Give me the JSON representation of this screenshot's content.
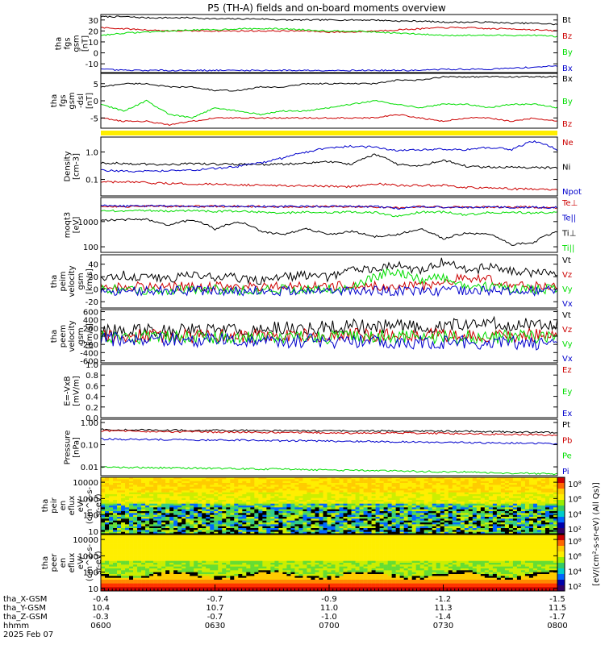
{
  "title": "P5 (TH-A) fields and on-board moments overview",
  "colors": {
    "black": "#000000",
    "red": "#cc0000",
    "green": "#00dd00",
    "blue": "#0000cc",
    "yellow": "#ffee00"
  },
  "chart_data": [
    {
      "type": "line",
      "id": "fgs",
      "ylabel": [
        "tha",
        "fgs",
        "gsm",
        "[nT]"
      ],
      "ylim": [
        -18,
        35
      ],
      "yticks": [
        30,
        20,
        10,
        0,
        -10
      ],
      "series": [
        {
          "name": "Bt",
          "color": "black",
          "values": [
            33,
            33,
            32,
            32,
            32,
            31,
            31,
            31,
            30,
            30,
            30,
            30,
            30,
            29,
            29,
            28,
            28,
            28,
            27,
            27,
            26
          ]
        },
        {
          "name": "Bz",
          "color": "red",
          "values": [
            23,
            22,
            21,
            20,
            20,
            20,
            20,
            20,
            20,
            20,
            19,
            19,
            20,
            21,
            22,
            23,
            23,
            22,
            22,
            21,
            20
          ]
        },
        {
          "name": "By",
          "color": "green",
          "values": [
            16,
            18,
            19,
            20,
            21,
            21,
            22,
            22,
            22,
            21,
            20,
            20,
            19,
            18,
            17,
            16,
            16,
            16,
            16,
            16,
            15
          ]
        },
        {
          "name": "Bx",
          "color": "blue",
          "values": [
            -15,
            -16,
            -16,
            -16,
            -16,
            -16,
            -16,
            -16,
            -16,
            -16,
            -16,
            -16,
            -16,
            -16,
            -16,
            -15,
            -15,
            -15,
            -14,
            -13,
            -12
          ]
        }
      ]
    },
    {
      "type": "line",
      "id": "fgs_dsl",
      "ylabel": [
        "tha",
        "fgs",
        "gsm",
        "-dsl",
        "[nT]"
      ],
      "ylim": [
        -8,
        8
      ],
      "yticks": [
        5,
        0,
        -5
      ],
      "series": [
        {
          "name": "Bx",
          "color": "black",
          "values": [
            4,
            5,
            5,
            4,
            4,
            3,
            3,
            4,
            4,
            5,
            5,
            5,
            5,
            6,
            6,
            7,
            7,
            7,
            7,
            7,
            7
          ]
        },
        {
          "name": "By",
          "color": "green",
          "values": [
            -1,
            -3,
            0,
            -4,
            -5,
            -2,
            -3,
            -4,
            -3,
            -3,
            -2,
            -1,
            0,
            -1,
            -2,
            -1,
            -1,
            -2,
            -1,
            -1,
            -2
          ]
        },
        {
          "name": "Bz",
          "color": "red",
          "values": [
            -5,
            -6,
            -6,
            -7,
            -6,
            -5,
            -5,
            -5,
            -5,
            -5,
            -5,
            -5,
            -5,
            -4,
            -5,
            -6,
            -5,
            -5,
            -6,
            -5,
            -6
          ]
        }
      ]
    },
    {
      "type": "band",
      "id": "mode_bar",
      "color": "yellow"
    },
    {
      "type": "line",
      "id": "density",
      "scale": "log",
      "ylabel": [
        "Density",
        "[cm-3]"
      ],
      "ylim": [
        0.025,
        3.5
      ],
      "yticks": [
        1.0,
        0.1
      ],
      "ytick_labels": [
        "1.0",
        "0.1"
      ],
      "series": [
        {
          "name": "Ne",
          "color": "red",
          "values": [
            0.08,
            0.08,
            0.075,
            0.07,
            0.07,
            0.065,
            0.065,
            0.06,
            0.06,
            0.06,
            0.055,
            0.055,
            0.07,
            0.06,
            0.06,
            0.06,
            0.05,
            0.05,
            0.045,
            0.045,
            0.04
          ]
        },
        {
          "name": "Ni",
          "color": "black",
          "values": [
            0.4,
            0.38,
            0.36,
            0.35,
            0.38,
            0.36,
            0.35,
            0.35,
            0.36,
            0.4,
            0.45,
            0.35,
            0.8,
            0.35,
            0.3,
            0.5,
            0.3,
            0.28,
            0.28,
            0.27,
            0.27
          ]
        },
        {
          "name": "Npot",
          "color": "blue",
          "values": [
            0.22,
            0.2,
            0.2,
            0.2,
            0.22,
            0.25,
            0.3,
            0.4,
            0.6,
            1.0,
            1.4,
            1.6,
            1.5,
            1.1,
            1.2,
            1.3,
            1.2,
            1.5,
            1.2,
            2.5,
            1.2
          ]
        }
      ]
    },
    {
      "type": "line",
      "id": "temperature",
      "scale": "log",
      "ylabel": [
        "moqt3",
        "[eV]"
      ],
      "ylim": [
        60,
        9000
      ],
      "yticks": [
        1000,
        100
      ],
      "ytick_labels": [
        "1000",
        "100"
      ],
      "series": [
        {
          "name": "Te⊥",
          "color": "red",
          "values": [
            4000,
            4000,
            4100,
            4000,
            4000,
            4000,
            4000,
            4000,
            3900,
            3900,
            4000,
            3900,
            3800,
            3500,
            3900,
            3800,
            3700,
            3800,
            3800,
            3700,
            3600
          ]
        },
        {
          "name": "Te||",
          "color": "blue",
          "values": [
            4200,
            4100,
            4200,
            4100,
            4000,
            4100,
            4100,
            4000,
            4000,
            4000,
            4000,
            4000,
            3900,
            3300,
            3900,
            3700,
            3600,
            3700,
            3700,
            3700,
            3600
          ]
        },
        {
          "name": "Ti⊥",
          "color": "black",
          "values": [
            1100,
            1200,
            1200,
            700,
            1200,
            500,
            1000,
            400,
            300,
            500,
            300,
            400,
            250,
            300,
            500,
            200,
            350,
            300,
            120,
            150,
            400
          ]
        },
        {
          "name": "Ti||",
          "color": "green",
          "values": [
            2600,
            2700,
            2700,
            2600,
            2700,
            2500,
            2600,
            2400,
            2200,
            2400,
            2300,
            2400,
            2300,
            1600,
            2400,
            2400,
            1800,
            2300,
            2300,
            2200,
            2300
          ]
        }
      ]
    },
    {
      "type": "line",
      "id": "peim_velocity",
      "ylabel": [
        "tha",
        "peim",
        "velocity",
        "gsm",
        "[km/s]"
      ],
      "ylim": [
        -30,
        55
      ],
      "yticks": [
        40,
        20,
        0,
        -20
      ],
      "series": [
        {
          "name": "Vt",
          "color": "black",
          "values": [
            20,
            22,
            20,
            18,
            22,
            20,
            18,
            15,
            20,
            22,
            20,
            30,
            35,
            40,
            30,
            45,
            30,
            35,
            30,
            25,
            28
          ]
        },
        {
          "name": "Vz",
          "color": "red",
          "values": [
            5,
            5,
            5,
            5,
            5,
            5,
            5,
            5,
            5,
            5,
            5,
            5,
            5,
            5,
            5,
            10,
            20,
            15,
            5,
            5,
            5
          ]
        },
        {
          "name": "Vy",
          "color": "green",
          "values": [
            0,
            0,
            -5,
            -2,
            0,
            0,
            -3,
            0,
            0,
            0,
            0,
            0,
            20,
            30,
            15,
            20,
            5,
            5,
            0,
            0,
            0
          ]
        },
        {
          "name": "Vx",
          "color": "blue",
          "values": [
            -3,
            -2,
            -3,
            -2,
            -3,
            -2,
            -3,
            -2,
            -3,
            -2,
            -3,
            -2,
            -2,
            -3,
            -2,
            -3,
            -2,
            -3,
            -2,
            -3,
            -2
          ]
        }
      ]
    },
    {
      "type": "line",
      "id": "peem_velocity",
      "ylabel": [
        "tha",
        "peem",
        "velocity",
        "gsm",
        "[km/s]"
      ],
      "ylim": [
        -650,
        650
      ],
      "yticks": [
        600,
        400,
        200,
        0,
        -200,
        -400,
        -600
      ],
      "series": [
        {
          "name": "Vt",
          "color": "black",
          "values": [
            150,
            140,
            160,
            150,
            170,
            150,
            160,
            170,
            200,
            200,
            220,
            250,
            230,
            260,
            250,
            260,
            280,
            300,
            290,
            300,
            290
          ]
        },
        {
          "name": "Vz",
          "color": "red",
          "values": [
            0,
            10,
            0,
            10,
            0,
            0,
            10,
            20,
            10,
            30,
            20,
            30,
            20,
            40,
            30,
            20,
            30,
            40,
            30,
            20,
            30
          ]
        },
        {
          "name": "Vy",
          "color": "green",
          "values": [
            -20,
            -10,
            -20,
            -10,
            -20,
            -10,
            -20,
            -10,
            -20,
            -10,
            -20,
            -10,
            -20,
            -10,
            -20,
            -10,
            -20,
            -10,
            -20,
            -10,
            -20
          ]
        },
        {
          "name": "Vx",
          "color": "blue",
          "values": [
            -80,
            -70,
            -90,
            -80,
            -100,
            -80,
            -90,
            -100,
            -120,
            -110,
            -130,
            -120,
            -140,
            -150,
            -140,
            -160,
            -150,
            -170,
            -160,
            -170,
            -160
          ]
        }
      ]
    },
    {
      "type": "line",
      "id": "efield",
      "ylabel": [
        "E=-VxB",
        "[mV/m]"
      ],
      "ylim": [
        0,
        1.0
      ],
      "yticks": [
        1.0,
        0.8,
        0.6,
        0.4,
        0.2,
        0.0
      ],
      "ytick_labels": [
        "1.0",
        "0.8",
        "0.6",
        "0.4",
        "0.2",
        "0.0"
      ],
      "series": [
        {
          "name": "Ez",
          "color": "red",
          "values": []
        },
        {
          "name": "Ey",
          "color": "green",
          "values": []
        },
        {
          "name": "Ex",
          "color": "blue",
          "values": []
        }
      ]
    },
    {
      "type": "line",
      "id": "pressure",
      "scale": "log",
      "ylabel": [
        "Pressure",
        "[nPa]"
      ],
      "ylim": [
        0.004,
        1.4
      ],
      "yticks": [
        1.0,
        0.1,
        0.01
      ],
      "ytick_labels": [
        "1.00",
        "0.10",
        "0.01"
      ],
      "series": [
        {
          "name": "Pt",
          "color": "black",
          "values": [
            0.48,
            0.47,
            0.46,
            0.45,
            0.45,
            0.44,
            0.44,
            0.43,
            0.43,
            0.42,
            0.42,
            0.41,
            0.42,
            0.42,
            0.41,
            0.4,
            0.4,
            0.38,
            0.37,
            0.36,
            0.35
          ]
        },
        {
          "name": "Pb",
          "color": "red",
          "values": [
            0.42,
            0.41,
            0.4,
            0.38,
            0.38,
            0.37,
            0.37,
            0.36,
            0.36,
            0.35,
            0.34,
            0.33,
            0.34,
            0.34,
            0.33,
            0.32,
            0.31,
            0.3,
            0.29,
            0.28,
            0.27
          ]
        },
        {
          "name": "Pe",
          "color": "green",
          "values": [
            0.01,
            0.0095,
            0.0092,
            0.009,
            0.0088,
            0.0085,
            0.0082,
            0.008,
            0.0078,
            0.0075,
            0.0072,
            0.007,
            0.0068,
            0.0065,
            0.0062,
            0.006,
            0.0058,
            0.0055,
            0.0052,
            0.005,
            0.0048
          ]
        },
        {
          "name": "Pi",
          "color": "blue",
          "values": [
            0.18,
            0.175,
            0.17,
            0.17,
            0.165,
            0.16,
            0.16,
            0.155,
            0.15,
            0.15,
            0.145,
            0.14,
            0.14,
            0.135,
            0.13,
            0.13,
            0.125,
            0.12,
            0.12,
            0.115,
            0.11
          ]
        }
      ]
    },
    {
      "type": "heatmap",
      "id": "peir_eflux",
      "scale": "log",
      "ylabel": [
        "tha",
        "peir",
        "en",
        "eflux",
        "eV/",
        "(cm^2-s-",
        "sr-eV)"
      ],
      "ylim": [
        7,
        20000
      ],
      "yticks": [
        10000,
        1000,
        100,
        10
      ],
      "ytick_labels": [
        "10000",
        "1000",
        "100",
        "10"
      ],
      "colorbar": {
        "ticks": [
          "10⁸",
          "10⁶",
          "10⁴",
          "10²"
        ],
        "label": "eV/(cm²-s-sr-eV) (All Qs)"
      }
    },
    {
      "type": "heatmap",
      "id": "peer_eflux",
      "scale": "log",
      "ylabel": [
        "tha",
        "peer",
        "en",
        "eflux",
        "eV/",
        "(cm^2-s-",
        "sr-eV)"
      ],
      "ylim": [
        7,
        20000
      ],
      "yticks": [
        10000,
        1000,
        100,
        10
      ],
      "ytick_labels": [
        "10000",
        "1000",
        "100",
        "10"
      ],
      "colorbar": {
        "ticks": [
          "10⁸",
          "10⁶",
          "10⁴",
          "10²"
        ],
        "label": "eV/(cm²-s-sr-eV) (All Qs)"
      }
    }
  ],
  "xaxis": {
    "rows": [
      {
        "label": "tha_X-GSM",
        "values": [
          "-0.4",
          "-0.7",
          "-0.9",
          "-1.2",
          "-1.5"
        ]
      },
      {
        "label": "tha_Y-GSM",
        "values": [
          "10.4",
          "10.7",
          "11.0",
          "11.3",
          "11.5"
        ]
      },
      {
        "label": "tha_Z-GSM",
        "values": [
          "-0.3",
          "-0.7",
          "-1.0",
          "-1.4",
          "-1.7"
        ]
      },
      {
        "label": "hhmm",
        "values": [
          "0600",
          "0630",
          "0700",
          "0730",
          "0800"
        ]
      }
    ],
    "date": "2025 Feb 07"
  }
}
